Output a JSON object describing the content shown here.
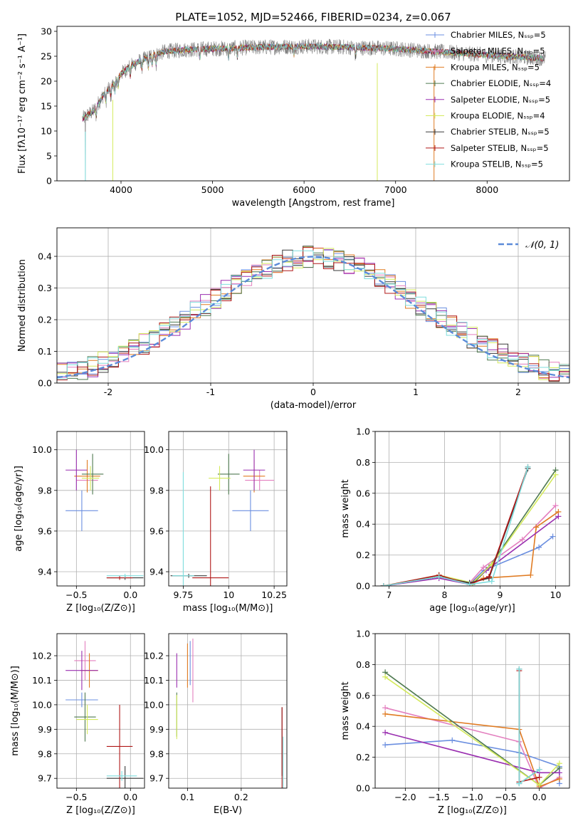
{
  "figure": {
    "title": "PLATE=1052, MJD=52466, FIBERID=0234, z=0.067"
  },
  "colors": {
    "series": [
      "#6b8fe0",
      "#e37fbf",
      "#e07b22",
      "#4f7a50",
      "#9a2fb0",
      "#d4ea5c",
      "#3a3a3a",
      "#b01818",
      "#7fdede"
    ],
    "model_gray": "#808080",
    "gauss": "#5b8ad8"
  },
  "chart_data": [
    {
      "id": "spectrum",
      "type": "line",
      "xlabel": "wavelength [Angstrom, rest frame]",
      "ylabel": "Flux [fλ10⁻¹⁷ erg cm⁻² s⁻¹ A⁻¹]",
      "xlim": [
        3300,
        8900
      ],
      "ylim": [
        0,
        31
      ],
      "xticks": [
        4000,
        5000,
        6000,
        7000,
        8000
      ],
      "yticks": [
        0,
        5,
        10,
        15,
        20,
        25,
        30
      ],
      "legend_position": "upper right",
      "legend": [
        "Chabrier MILES, Nₛₛₚ=5",
        "Salpeter MILES, Nₛₛₚ=5",
        "Kroupa MILES, Nₛₛₚ=5",
        "Chabrier ELODIE, Nₛₛₚ=4",
        "Salpeter ELODIE, Nₛₛₚ=5",
        "Kroupa ELODIE, Nₛₛₚ=4",
        "Chabrier STELIB, Nₛₛₚ=5",
        "Salpeter STELIB, Nₛₛₚ=5",
        "Kroupa STELIB, Nₛₛₚ=5"
      ],
      "continuum": {
        "x": [
          3580,
          3700,
          3800,
          3900,
          4000,
          4100,
          4200,
          4300,
          4400,
          4500,
          4700,
          5000,
          5500,
          6000,
          6500,
          7000,
          7400,
          7800,
          8200,
          8700
        ],
        "y": [
          12.5,
          14,
          17,
          19,
          21.5,
          23,
          24,
          24.8,
          25.5,
          26,
          26.3,
          26.5,
          26.8,
          27,
          26.8,
          26.5,
          26,
          25.5,
          25,
          24.5
        ]
      },
      "drops": [
        {
          "x": 3610,
          "y": 0
        },
        {
          "x": 3910,
          "y": 0
        },
        {
          "x": 6800,
          "y": 0
        },
        {
          "x": 7420,
          "y": 0
        }
      ]
    },
    {
      "id": "residual-histogram",
      "type": "histogram",
      "xlabel": "(data-model)/error",
      "ylabel": "Normed distribution",
      "xlim": [
        -2.5,
        2.5
      ],
      "ylim": [
        0,
        0.49
      ],
      "xticks": [
        -2,
        -1,
        0,
        1,
        2
      ],
      "yticks": [
        0.0,
        0.1,
        0.2,
        0.3,
        0.4
      ],
      "grid": true,
      "legend_position": "upper right",
      "legend": [
        "𝒩(0, 1)"
      ],
      "bin_width": 0.1,
      "bin_start": -2.5,
      "bins": 50,
      "gaussian": {
        "mu": 0,
        "sigma": 1
      }
    },
    {
      "id": "age-vs-z",
      "type": "errorbar",
      "xlabel": "Z [log₁₀(Z/Z⊙)]",
      "ylabel": "age  [log₁₀(age/yr)]",
      "xlim": [
        -0.68,
        0.13
      ],
      "ylim": [
        9.33,
        10.09
      ],
      "xticks": [
        -0.5,
        0.0
      ],
      "xticklabels": [
        "−0.5",
        "0.0"
      ],
      "yticks": [
        9.4,
        9.6,
        9.8,
        10.0
      ],
      "grid": true,
      "points": [
        {
          "x": -0.45,
          "xerr": 0.15,
          "y": 9.7,
          "yerr": 0.1
        },
        {
          "x": -0.4,
          "xerr": 0.1,
          "y": 9.85,
          "yerr": 0.05
        },
        {
          "x": -0.4,
          "xerr": 0.12,
          "y": 9.87,
          "yerr": 0.08
        },
        {
          "x": -0.35,
          "xerr": 0.1,
          "y": 9.88,
          "yerr": 0.1
        },
        {
          "x": -0.5,
          "xerr": 0.1,
          "y": 9.9,
          "yerr": 0.1
        },
        {
          "x": -0.37,
          "xerr": 0.08,
          "y": 9.86,
          "yerr": 0.06
        },
        {
          "x": -0.05,
          "xerr": 0.17,
          "y": 9.37,
          "yerr": 0.01
        },
        {
          "x": -0.1,
          "xerr": 0.12,
          "y": 9.37,
          "yerr": 0.01
        },
        {
          "x": -0.05,
          "xerr": 0.17,
          "y": 9.38,
          "yerr": 0.01
        }
      ]
    },
    {
      "id": "age-vs-mass",
      "type": "errorbar",
      "xlabel": "mass [log₁₀(M/M⊙)]",
      "ylabel": "",
      "xlim": [
        9.67,
        10.32
      ],
      "ylim": [
        9.33,
        10.09
      ],
      "xticks": [
        9.75,
        10.0,
        10.25
      ],
      "yticks": [
        9.4,
        9.6,
        9.8,
        10.0
      ],
      "grid": true,
      "points": [
        {
          "x": 10.12,
          "xerr": 0.1,
          "y": 9.7,
          "yerr": 0.1
        },
        {
          "x": 10.17,
          "xerr": 0.08,
          "y": 9.85,
          "yerr": 0.05
        },
        {
          "x": 10.14,
          "xerr": 0.06,
          "y": 9.87,
          "yerr": 0.08
        },
        {
          "x": 10.0,
          "xerr": 0.06,
          "y": 9.88,
          "yerr": 0.1
        },
        {
          "x": 10.14,
          "xerr": 0.06,
          "y": 9.9,
          "yerr": 0.1
        },
        {
          "x": 9.95,
          "xerr": 0.06,
          "y": 9.86,
          "yerr": 0.06
        },
        {
          "x": 9.78,
          "xerr": 0.1,
          "y": 9.38,
          "yerr": 0.01
        },
        {
          "x": 9.9,
          "xerr": 0.1,
          "y": 9.37,
          "yerr": 0.45
        },
        {
          "x": 9.75,
          "xerr": 0.06,
          "y": 9.38,
          "yerr": 0.51
        }
      ]
    },
    {
      "id": "mass-weight-vs-age",
      "type": "line",
      "xlabel": "age  [log₁₀(age/yr)]",
      "ylabel": "mass weight",
      "xlim": [
        6.75,
        10.25
      ],
      "ylim": [
        0,
        1.0
      ],
      "xticks": [
        7,
        8,
        9,
        10
      ],
      "yticks": [
        0.0,
        0.2,
        0.4,
        0.6,
        0.8,
        1.0
      ],
      "grid": true,
      "series": [
        {
          "x": [
            6.9,
            7.9,
            8.45,
            8.7,
            9.7,
            9.95
          ],
          "y": [
            0.0,
            0.06,
            0.01,
            0.1,
            0.25,
            0.32
          ]
        },
        {
          "x": [
            6.9,
            7.9,
            8.45,
            8.7,
            9.4,
            10.0
          ],
          "y": [
            0.0,
            0.06,
            0.02,
            0.12,
            0.3,
            0.52
          ]
        },
        {
          "x": [
            6.9,
            7.9,
            8.45,
            8.7,
            9.55,
            9.65,
            10.05
          ],
          "y": [
            0.0,
            0.06,
            0.01,
            0.05,
            0.07,
            0.38,
            0.48
          ]
        },
        {
          "x": [
            6.9,
            7.9,
            8.5,
            8.8,
            10.0
          ],
          "y": [
            0.0,
            0.06,
            0.01,
            0.12,
            0.75
          ]
        },
        {
          "x": [
            6.9,
            7.9,
            8.45,
            8.75,
            10.05
          ],
          "y": [
            0.0,
            0.05,
            0.01,
            0.1,
            0.45
          ]
        },
        {
          "x": [
            6.9,
            7.9,
            8.5,
            8.85,
            10.0
          ],
          "y": [
            0.0,
            0.07,
            0.02,
            0.14,
            0.72
          ]
        },
        {
          "x": [
            6.9,
            7.9,
            8.45,
            8.8,
            9.5
          ],
          "y": [
            0.0,
            0.06,
            0.02,
            0.05,
            0.76
          ]
        },
        {
          "x": [
            6.9,
            7.9,
            8.45,
            8.8,
            9.5
          ],
          "y": [
            0.0,
            0.07,
            0.01,
            0.06,
            0.77
          ]
        },
        {
          "x": [
            6.9,
            7.9,
            8.45,
            8.85,
            9.5
          ],
          "y": [
            0.0,
            0.06,
            0.01,
            0.03,
            0.77
          ]
        }
      ]
    },
    {
      "id": "mass-vs-z",
      "type": "errorbar",
      "xlabel": "Z [log₁₀(Z/Z⊙)]",
      "ylabel": "mass [log₁₀(M/M⊙)]",
      "xlim": [
        -0.68,
        0.13
      ],
      "ylim": [
        9.66,
        10.29
      ],
      "xticks": [
        -0.5,
        0.0
      ],
      "xticklabels": [
        "−0.5",
        "0.0"
      ],
      "yticks": [
        9.7,
        9.8,
        9.9,
        10.0,
        10.1,
        10.2
      ],
      "grid": true,
      "points": [
        {
          "x": -0.45,
          "xerr": 0.15,
          "y": 10.02,
          "yerr": 0.03
        },
        {
          "x": -0.42,
          "xerr": 0.1,
          "y": 10.18,
          "yerr": 0.08
        },
        {
          "x": -0.38,
          "xerr": 0.08,
          "y": 10.14,
          "yerr": 0.07
        },
        {
          "x": -0.42,
          "xerr": 0.1,
          "y": 9.95,
          "yerr": 0.1
        },
        {
          "x": -0.45,
          "xerr": 0.15,
          "y": 10.14,
          "yerr": 0.08
        },
        {
          "x": -0.4,
          "xerr": 0.1,
          "y": 9.94,
          "yerr": 0.06
        },
        {
          "x": -0.05,
          "xerr": 0.17,
          "y": 9.7,
          "yerr": 0.05
        },
        {
          "x": -0.1,
          "xerr": 0.12,
          "y": 9.83,
          "yerr": 0.17
        },
        {
          "x": -0.08,
          "xerr": 0.14,
          "y": 9.71,
          "yerr": 0.02
        }
      ]
    },
    {
      "id": "mass-vs-ebv",
      "type": "errorbar",
      "xlabel": "E(B-V)",
      "ylabel": "",
      "xlim": [
        0.065,
        0.285
      ],
      "ylim": [
        9.66,
        10.29
      ],
      "xticks": [
        0.1,
        0.2
      ],
      "yticks": [
        9.7,
        9.8,
        9.9,
        10.0,
        10.1,
        10.2
      ],
      "grid": true,
      "points": [
        {
          "x": 0.105,
          "xerr": 0.0,
          "y": 10.17,
          "yerr": 0.09
        },
        {
          "x": 0.11,
          "xerr": 0.0,
          "y": 10.14,
          "yerr": 0.13
        },
        {
          "x": 0.1,
          "xerr": 0.0,
          "y": 10.16,
          "yerr": 0.09
        },
        {
          "x": 0.08,
          "xerr": 0.0,
          "y": 9.96,
          "yerr": 0.09
        },
        {
          "x": 0.08,
          "xerr": 0.0,
          "y": 10.14,
          "yerr": 0.07
        },
        {
          "x": 0.08,
          "xerr": 0.0,
          "y": 9.95,
          "yerr": 0.09
        },
        {
          "x": 0.276,
          "xerr": 0.0,
          "y": 9.85,
          "yerr": 0.14
        },
        {
          "x": 0.276,
          "xerr": 0.0,
          "y": 9.82,
          "yerr": 0.17
        },
        {
          "x": 0.278,
          "xerr": 0.0,
          "y": 9.75,
          "yerr": 0.12
        }
      ]
    },
    {
      "id": "mass-weight-vs-z",
      "type": "line",
      "xlabel": "Z [log₁₀(Z/Z⊙)]",
      "ylabel": "mass weight",
      "xlim": [
        -2.45,
        0.45
      ],
      "ylim": [
        0,
        1.0
      ],
      "xticks": [
        -2.0,
        -1.5,
        -1.0,
        -0.5,
        0.0
      ],
      "xticklabels": [
        "−2.0",
        "−1.5",
        "−1.0",
        "−0.5",
        "0.0"
      ],
      "yticks": [
        0.0,
        0.2,
        0.4,
        0.6,
        0.8,
        1.0
      ],
      "grid": true,
      "series": [
        {
          "x": [
            -2.3,
            -1.3,
            -0.3,
            0.3,
            0.3
          ],
          "y": [
            0.28,
            0.31,
            0.23,
            0.14,
            0.03
          ]
        },
        {
          "x": [
            -2.3,
            -0.3,
            0.0,
            0.3
          ],
          "y": [
            0.52,
            0.3,
            0.0,
            0.07
          ]
        },
        {
          "x": [
            -2.3,
            -0.3,
            0.0,
            0.3
          ],
          "y": [
            0.48,
            0.38,
            0.01,
            0.06
          ]
        },
        {
          "x": [
            -2.3,
            0.0,
            0.3
          ],
          "y": [
            0.75,
            0.02,
            0.13
          ]
        },
        {
          "x": [
            -2.3,
            0.0,
            0.3
          ],
          "y": [
            0.36,
            0.1,
            0.1
          ]
        },
        {
          "x": [
            -2.3,
            0.0,
            0.3
          ],
          "y": [
            0.72,
            0.02,
            0.16
          ]
        },
        {
          "x": [
            -0.3,
            -0.3,
            0.0
          ],
          "y": [
            0.77,
            0.03,
            0.12
          ]
        },
        {
          "x": [
            -0.3,
            -0.3,
            0.0
          ],
          "y": [
            0.76,
            0.04,
            0.07
          ]
        },
        {
          "x": [
            -0.3,
            -0.3,
            0.0
          ],
          "y": [
            0.77,
            0.03,
            0.12
          ]
        }
      ]
    }
  ]
}
